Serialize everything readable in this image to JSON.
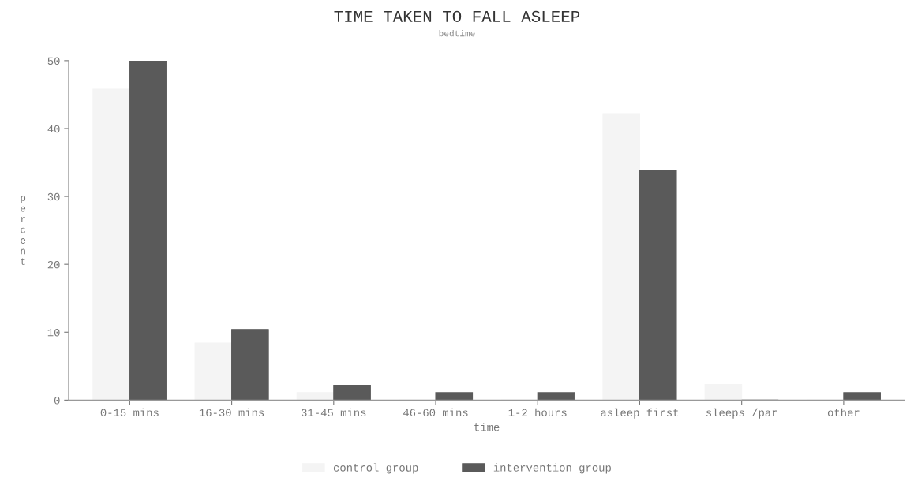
{
  "chart_data": {
    "type": "bar",
    "title": "TIME TAKEN TO FALL ASLEEP",
    "subtitle": "bedtime",
    "xlabel": "time",
    "ylabel": "percent",
    "categories": [
      "0-15 mins",
      "16-30 mins",
      "31-45 mins",
      "46-60 mins",
      "1-2 hours",
      "asleep first",
      "sleeps /par",
      "other"
    ],
    "series": [
      {
        "name": "control group",
        "color": "#f4f4f4",
        "values": [
          45.8,
          8.4,
          1.1,
          0,
          0,
          42.2,
          2.3,
          0
        ]
      },
      {
        "name": "intervention group",
        "color": "#5a5a5a",
        "values": [
          50,
          10.4,
          2.2,
          1.1,
          1.1,
          33.8,
          0,
          1.1
        ]
      }
    ],
    "ylim": [
      0,
      50
    ],
    "yticks": [
      0,
      10,
      20,
      30,
      40,
      50
    ],
    "grid": false,
    "legend": "bottom"
  }
}
